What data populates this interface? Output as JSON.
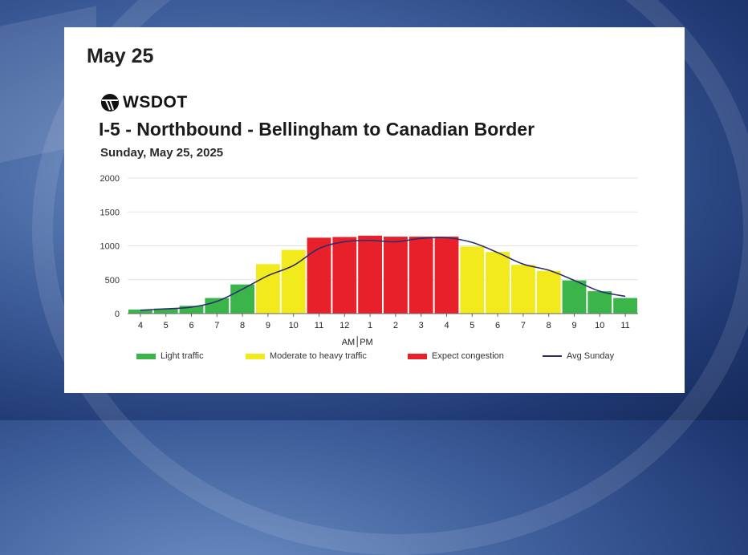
{
  "heading": "May 25",
  "logo": {
    "text": "WSDOT"
  },
  "chart_data": {
    "type": "bar",
    "title": "I-5 - Northbound - Bellingham to Canadian Border",
    "subtitle": "Sunday, May 25, 2025",
    "categories": [
      "4",
      "5",
      "6",
      "7",
      "8",
      "9",
      "10",
      "11",
      "12",
      "1",
      "2",
      "3",
      "4",
      "5",
      "6",
      "7",
      "8",
      "9",
      "10",
      "11"
    ],
    "values": [
      60,
      75,
      115,
      230,
      430,
      730,
      940,
      1120,
      1130,
      1150,
      1135,
      1135,
      1135,
      990,
      910,
      720,
      630,
      490,
      330,
      230
    ],
    "levels": [
      "light",
      "light",
      "light",
      "light",
      "light",
      "moderate",
      "moderate",
      "congestion",
      "congestion",
      "congestion",
      "congestion",
      "congestion",
      "congestion",
      "moderate",
      "moderate",
      "moderate",
      "moderate",
      "light",
      "light",
      "light"
    ],
    "avg_line": {
      "name": "Avg Sunday",
      "values": [
        50,
        70,
        95,
        180,
        360,
        560,
        710,
        960,
        1060,
        1080,
        1060,
        1110,
        1120,
        1050,
        900,
        730,
        640,
        490,
        330,
        255
      ]
    },
    "ylim": [
      0,
      2000
    ],
    "yticks": [
      0,
      500,
      1000,
      1500,
      2000
    ],
    "am_pm_label": {
      "am": "AM",
      "pm": "PM"
    },
    "legend": [
      {
        "key": "light",
        "label": "Light traffic"
      },
      {
        "key": "moderate",
        "label": "Moderate to heavy traffic"
      },
      {
        "key": "congestion",
        "label": "Expect congestion"
      },
      {
        "key": "avg",
        "label": "Avg Sunday"
      }
    ],
    "colors": {
      "light": "#3bb54a",
      "moderate": "#f2ea1c",
      "congestion": "#e8202a",
      "avg": "#2b2d6e",
      "grid": "#e3e3e3"
    },
    "grid": true,
    "legend_position": "bottom"
  }
}
